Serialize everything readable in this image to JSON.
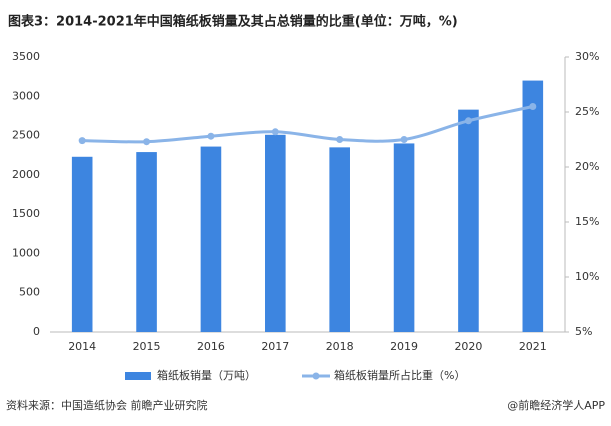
{
  "chart_data": {
    "type": "bar_line",
    "title": "图表3：2014-2021年中国箱纸板销量及其占总销量的比重(单位：万吨，%)",
    "categories": [
      "2014",
      "2015",
      "2016",
      "2017",
      "2018",
      "2019",
      "2020",
      "2021"
    ],
    "series": [
      {
        "name": "箱纸板销量（万吨）",
        "color": "#3d85e0",
        "type": "bar",
        "values": [
          2230,
          2290,
          2360,
          2510,
          2350,
          2400,
          2830,
          3200
        ]
      },
      {
        "name": "箱纸板销量所占比重（%）",
        "color": "#8ab4e8",
        "type": "line",
        "axis": "y2",
        "values": [
          22.4,
          22.3,
          22.8,
          23.2,
          22.5,
          22.5,
          24.2,
          25.5
        ]
      }
    ],
    "ylim": [
      0,
      3500
    ],
    "yticks": [
      0,
      500,
      1000,
      1500,
      2000,
      2500,
      3000,
      3500
    ],
    "y2lim": [
      5,
      30
    ],
    "y2ticks": [
      {
        "value": 5,
        "label": "5%"
      },
      {
        "value": 10,
        "label": "10%"
      },
      {
        "value": 15,
        "label": "15%"
      },
      {
        "value": 20,
        "label": "20%"
      },
      {
        "value": 25,
        "label": "25%"
      },
      {
        "value": 30,
        "label": "30%"
      }
    ],
    "source": "资料来源：中国造纸协会 前瞻产业研究院",
    "credit": "@前瞻经济学人APP"
  }
}
